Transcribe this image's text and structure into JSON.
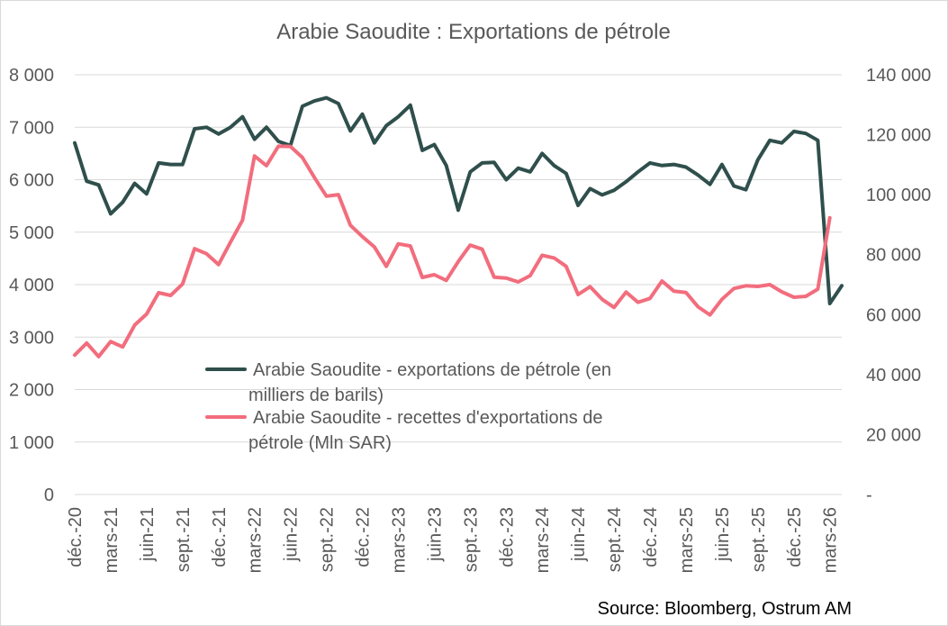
{
  "chart_data": {
    "type": "line",
    "title": "Arabie Saoudite : Exportations de pétrole",
    "source": "Source: Bloomberg, Ostrum AM",
    "x_tick_labels": [
      "déc.-20",
      "mars-21",
      "juin-21",
      "sept.-21",
      "déc.-21",
      "mars-22",
      "juin-22",
      "sept.-22",
      "déc.-22",
      "mars-23",
      "juin-23",
      "sept.-23",
      "déc.-23",
      "mars-24",
      "juin-24",
      "sept.-24",
      "déc.-24",
      "mars-25",
      "juin-25",
      "sept.-25",
      "déc.-25",
      "mars-26"
    ],
    "x_start": "2020-12",
    "x_end": "2026-04",
    "y_left": {
      "min": 0,
      "max": 8000,
      "step": 1000,
      "tick_labels": [
        "0",
        "1 000",
        "2 000",
        "3 000",
        "4 000",
        "5 000",
        "6 000",
        "7 000",
        "8 000"
      ]
    },
    "y_right": {
      "min": 0,
      "max": 140000,
      "step": 20000,
      "tick_labels": [
        "-",
        "20 000",
        "40 000",
        "60 000",
        "80 000",
        "100 000",
        "120 000",
        "140 000"
      ]
    },
    "grid": true,
    "legend_position": "center-left",
    "series": [
      {
        "name": "Arabie Saoudite - exportations de pétrole (en milliers de barils)",
        "legend_lines": [
          "Arabie Saoudite - exportations de pétrole (en",
          "milliers de barils)"
        ],
        "axis": "left",
        "color": "#2f4f4c",
        "values": [
          6700,
          5970,
          5900,
          5350,
          5570,
          5930,
          5730,
          6320,
          6290,
          6290,
          6970,
          7000,
          6870,
          7000,
          7200,
          6770,
          7000,
          6730,
          6650,
          7400,
          7500,
          7560,
          7450,
          6930,
          7250,
          6700,
          7030,
          7200,
          7420,
          6560,
          6670,
          6270,
          5420,
          6150,
          6320,
          6330,
          6000,
          6220,
          6150,
          6500,
          6270,
          6120,
          5510,
          5830,
          5710,
          5800,
          5960,
          6150,
          6320,
          6270,
          6290,
          6240,
          6090,
          5910,
          6290,
          5880,
          5810,
          6380,
          6750,
          6700,
          6920,
          6880,
          6750,
          3640,
          3980
        ]
      },
      {
        "name": "Arabie Saoudite - recettes d'exportations de pétrole (Mln SAR)",
        "legend_lines": [
          "Arabie Saoudite - recettes d'exportations de",
          "pétrole (Mln SAR)"
        ],
        "axis": "right",
        "color": "#f26d7d",
        "values": [
          46500,
          50500,
          46000,
          51000,
          49200,
          56500,
          60200,
          67300,
          66400,
          70200,
          82000,
          80300,
          76700,
          84200,
          91500,
          112900,
          109700,
          116200,
          116100,
          112400,
          105700,
          99500,
          100000,
          89800,
          86000,
          82600,
          76100,
          83600,
          82900,
          72400,
          73300,
          71400,
          77700,
          83200,
          81800,
          72500,
          72200,
          70900,
          73000,
          79800,
          78900,
          76100,
          66700,
          69300,
          65100,
          62400,
          67500,
          64100,
          65400,
          71200,
          67800,
          67400,
          62600,
          59900,
          65100,
          68700,
          69600,
          69400,
          70000,
          67600,
          65800,
          66100,
          68500,
          92300
        ]
      }
    ]
  }
}
